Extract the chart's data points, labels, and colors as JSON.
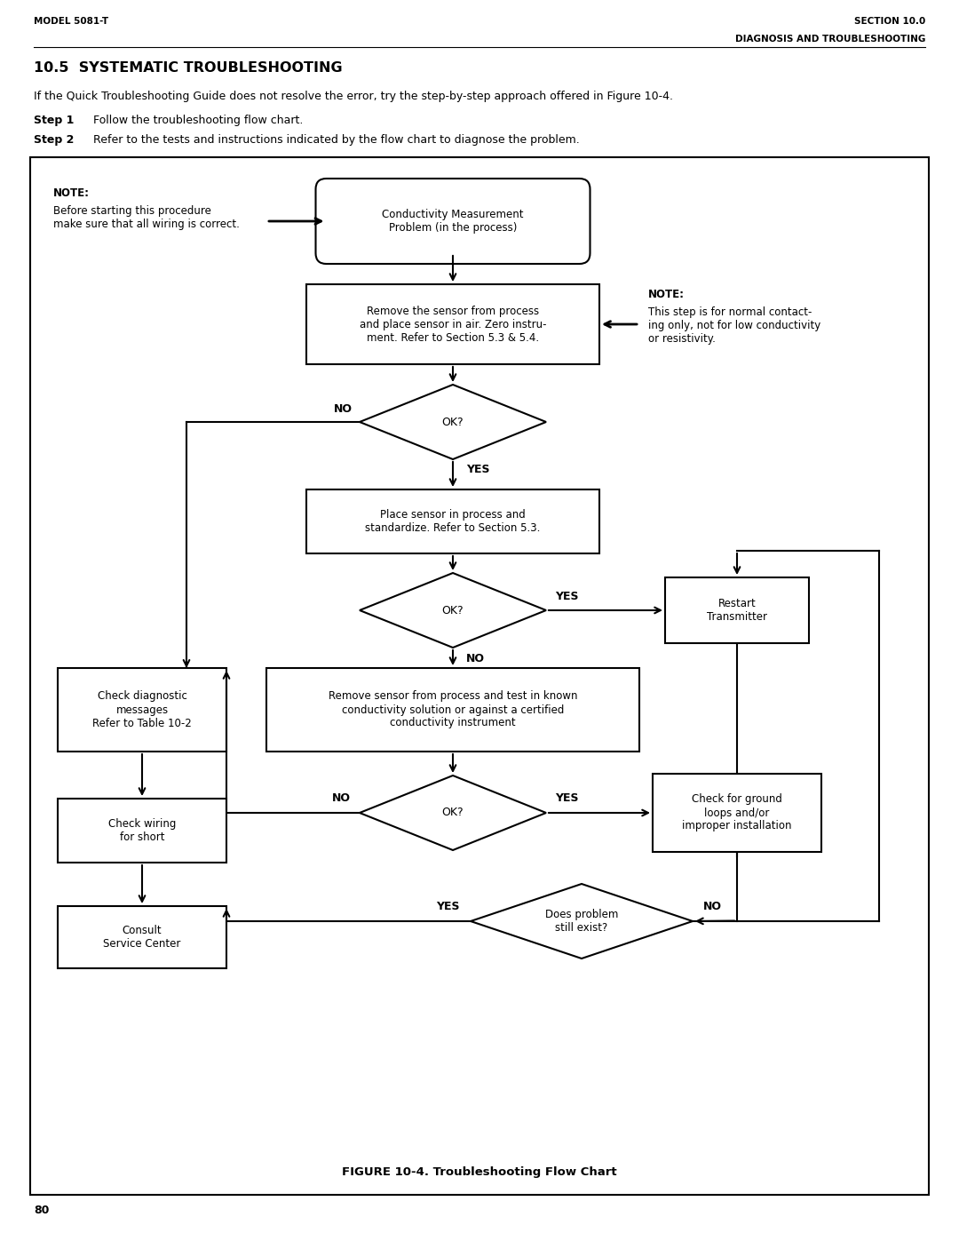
{
  "page_width": 10.8,
  "page_height": 13.97,
  "header_left": "MODEL 5081-T",
  "header_right_line1": "SECTION 10.0",
  "header_right_line2": "DIAGNOSIS AND TROUBLESHOOTING",
  "section_title": "10.5  SYSTEMATIC TROUBLESHOOTING",
  "para1": "If the Quick Troubleshooting Guide does not resolve the error, try the step-by-step approach offered in Figure 10-4.",
  "step1_bold": "Step 1",
  "step1_rest": "Follow the troubleshooting flow chart.",
  "step2_bold": "Step 2",
  "step2_rest": "Refer to the tests and instructions indicated by the flow chart to diagnose the problem.",
  "figure_caption": "FIGURE 10-4. Troubleshooting Flow Chart",
  "page_number": "80",
  "note1_title": "NOTE:",
  "note1_text": "Before starting this procedure\nmake sure that all wiring is correct.",
  "note2_title": "NOTE:",
  "note2_text": "This step is for normal contact-\ning only, not for low conductivity\nor resistivity.",
  "box1_text": "Conductivity Measurement\nProblem (in the process)",
  "box2_text": "Remove the sensor from process\nand place sensor in air. Zero instru-\nment. Refer to Section 5.3 & 5.4.",
  "diamond1_text": "OK?",
  "box3_text": "Place sensor in process and\nstandardize. Refer to Section 5.3.",
  "diamond2_text": "OK?",
  "box4_text": "Restart\nTransmitter",
  "box5_text": "Remove sensor from process and test in known\nconductivity solution or against a certified\nconductivity instrument",
  "box6_text": "Check diagnostic\nmessages\nRefer to Table 10-2",
  "box7_text": "Check wiring\nfor short",
  "box8_text": "Consult\nService Center",
  "box9_text": "Check for ground\nloops and/or\nimproper installation",
  "diamond3_text": "OK?",
  "diamond4_text": "Does problem\nstill exist?"
}
